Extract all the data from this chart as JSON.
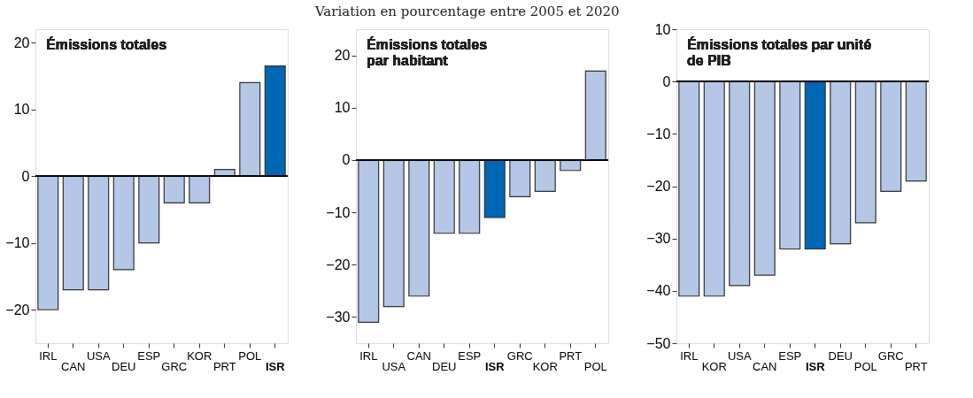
{
  "chart_data": [
    {
      "type": "bar",
      "title": "Émissions totales",
      "categories": [
        "IRL",
        "CAN",
        "USA",
        "DEU",
        "ESP",
        "GRC",
        "KOR",
        "PRT",
        "POL",
        "ISR"
      ],
      "values": [
        -20,
        -17,
        -17,
        -14,
        -10,
        -4,
        -4,
        1,
        14,
        16.5
      ],
      "colors": [
        "#b4c7e7",
        "#b4c7e7",
        "#b4c7e7",
        "#b4c7e7",
        "#b4c7e7",
        "#b4c7e7",
        "#b4c7e7",
        "#b4c7e7",
        "#b4c7e7",
        "#0067b4"
      ],
      "ylim": [
        -25,
        22
      ],
      "yticks": [
        -20,
        -10,
        0,
        10,
        20
      ]
    },
    {
      "type": "bar",
      "title": "Émissions totales\npar habitant",
      "subtitle": "Variation en pourcentage entre 2005 et 2020",
      "categories": [
        "IRL",
        "USA",
        "CAN",
        "DEU",
        "ESP",
        "ISR",
        "GRC",
        "KOR",
        "PRT",
        "POL"
      ],
      "values": [
        -31,
        -28,
        -26,
        -14,
        -14,
        -11,
        -7,
        -6,
        -2,
        17
      ],
      "colors": [
        "#b4c7e7",
        "#b4c7e7",
        "#b4c7e7",
        "#b4c7e7",
        "#b4c7e7",
        "#0067b4",
        "#b4c7e7",
        "#b4c7e7",
        "#b4c7e7",
        "#b4c7e7"
      ],
      "ylim": [
        -35,
        25
      ],
      "yticks": [
        -30,
        -20,
        -10,
        0,
        10,
        20
      ]
    },
    {
      "type": "bar",
      "title": "Émissions totales par unité\nde PIB",
      "categories": [
        "IRL",
        "KOR",
        "USA",
        "CAN",
        "ESP",
        "ISR",
        "DEU",
        "POL",
        "GRC",
        "PRT"
      ],
      "values": [
        -41,
        -41,
        -39,
        -37,
        -32,
        -32,
        -31,
        -27,
        -21,
        -19
      ],
      "colors": [
        "#b4c7e7",
        "#b4c7e7",
        "#b4c7e7",
        "#b4c7e7",
        "#b4c7e7",
        "#0067b4",
        "#b4c7e7",
        "#b4c7e7",
        "#b4c7e7",
        "#b4c7e7"
      ],
      "ylim": [
        -50,
        10
      ],
      "yticks": [
        -50,
        -40,
        -30,
        -20,
        -10,
        0,
        10
      ]
    }
  ]
}
